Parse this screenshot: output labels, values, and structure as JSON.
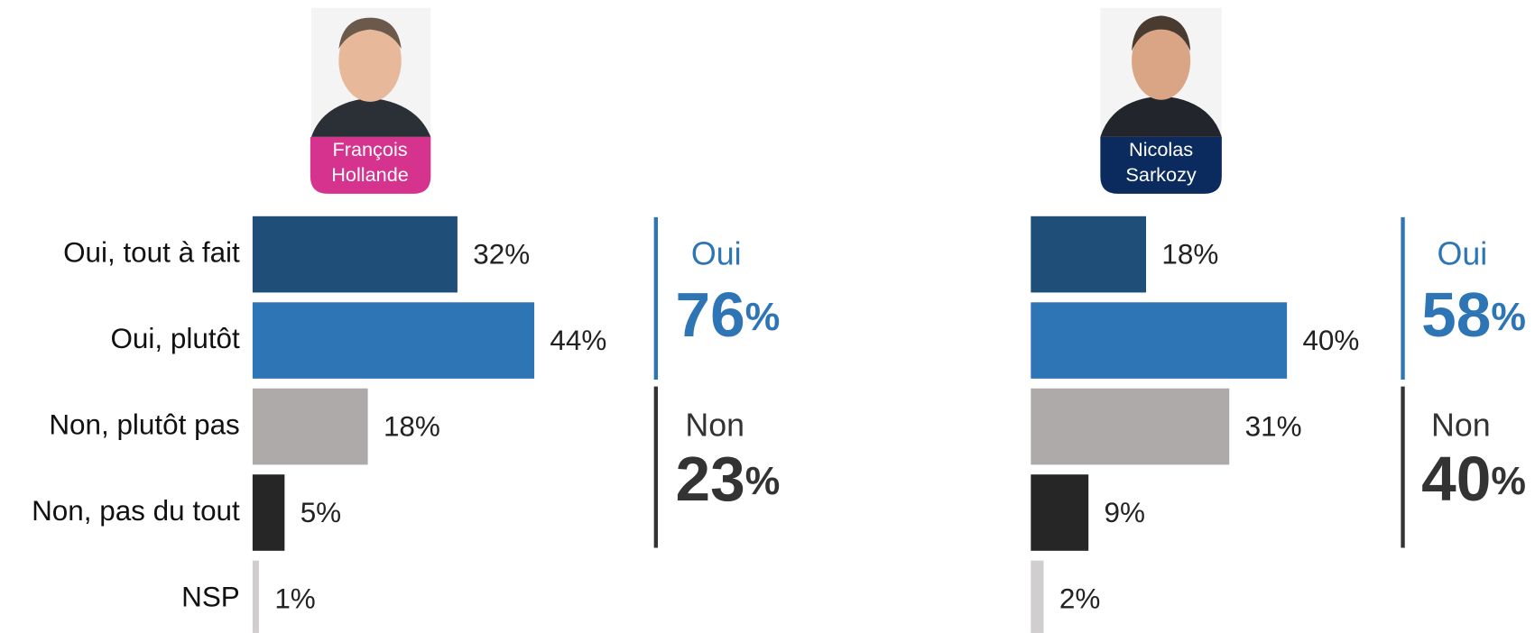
{
  "chart_data": [
    {
      "type": "bar",
      "orientation": "horizontal",
      "candidate_lines": [
        "François",
        "Hollande"
      ],
      "badge_color": "#d6338f",
      "categories": [
        "Oui, tout à fait",
        "Oui, plutôt",
        "Non, plutôt pas",
        "Non, pas du tout",
        "NSP"
      ],
      "values": [
        32,
        44,
        18,
        5,
        1
      ],
      "value_labels": [
        "32%",
        "44%",
        "18%",
        "5%",
        "1%"
      ],
      "colors": [
        "#1f4e79",
        "#2e75b6",
        "#aeaaaa",
        "#262626",
        "#d0cece"
      ],
      "xlim": [
        0,
        50
      ],
      "summary": [
        {
          "label": "Oui",
          "value": 76,
          "value_label": "76%",
          "color": "#2e75b6"
        },
        {
          "label": "Non",
          "value": 23,
          "value_label": "23%",
          "color": "#333333"
        }
      ]
    },
    {
      "type": "bar",
      "orientation": "horizontal",
      "candidate_lines": [
        "Nicolas",
        "Sarkozy"
      ],
      "badge_color": "#0b2a5e",
      "categories": [
        null,
        null,
        null,
        null,
        null
      ],
      "values": [
        18,
        40,
        31,
        9,
        2
      ],
      "value_labels": [
        "18%",
        "40%",
        "31%",
        "9%",
        "2%"
      ],
      "colors": [
        "#1f4e79",
        "#2e75b6",
        "#aeaaaa",
        "#262626",
        "#d0cece"
      ],
      "xlim": [
        0,
        50
      ],
      "summary": [
        {
          "label": "Oui",
          "value": 58,
          "value_label": "58%",
          "color": "#2e75b6"
        },
        {
          "label": "Non",
          "value": 40,
          "value_label": "40%",
          "color": "#333333"
        }
      ]
    }
  ]
}
